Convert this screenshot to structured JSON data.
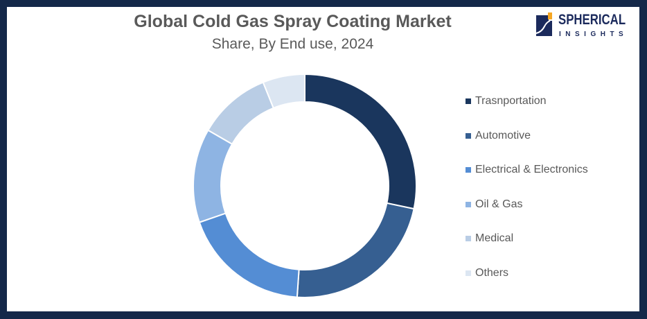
{
  "header": {
    "title": "Global Cold Gas Spray Coating Market",
    "subtitle": "Share, By End use, 2024"
  },
  "logo": {
    "name": "SPHERICAL",
    "tagline": "INSIGHTS"
  },
  "colors": {
    "border": "#142849",
    "background": "#ffffff",
    "text": "#595959"
  },
  "legend": {
    "items": [
      {
        "label": "Trasnportation",
        "color": "#1a365d"
      },
      {
        "label": "Automotive",
        "color": "#365f91"
      },
      {
        "label": "Electrical & Electronics",
        "color": "#548dd4"
      },
      {
        "label": "Oil & Gas",
        "color": "#8eb4e3"
      },
      {
        "label": "Medical",
        "color": "#b9cde5"
      },
      {
        "label": "Others",
        "color": "#dce6f2"
      }
    ]
  },
  "chart_data": {
    "type": "pie",
    "subtype": "donut",
    "title": "Global Cold Gas Spray Coating Market",
    "subtitle": "Share, By End use, 2024",
    "categories": [
      "Trasnportation",
      "Automotive",
      "Electrical & Electronics",
      "Oil & Gas",
      "Medical",
      "Others"
    ],
    "values": [
      28.3,
      22.8,
      18.6,
      13.6,
      10.6,
      6.1
    ],
    "colors": [
      "#1a365d",
      "#365f91",
      "#548dd4",
      "#8eb4e3",
      "#b9cde5",
      "#dce6f2"
    ],
    "unit": "%",
    "start_angle": "12 o'clock, clockwise",
    "legend_position": "right",
    "data_labels": false
  }
}
